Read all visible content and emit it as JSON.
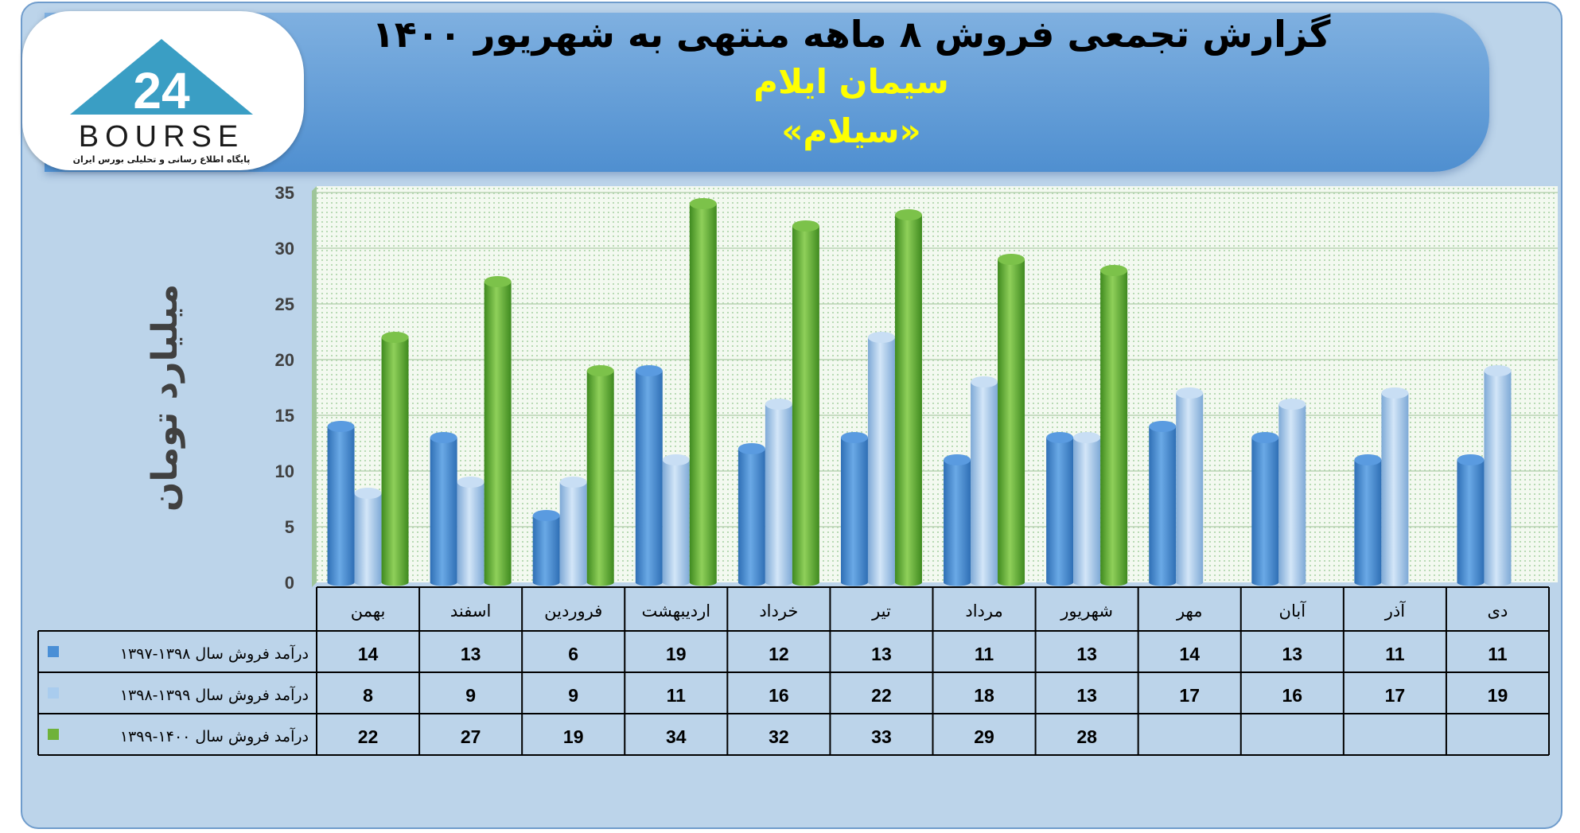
{
  "header": {
    "title": "گزارش تجمعی فروش ۸ ماهه منتهی به شهریور ۱۴۰۰",
    "subtitle": "سیمان ایلام",
    "symbol": "«سیلام»"
  },
  "logo": {
    "text": "BOURSE",
    "number": "24",
    "tagline": "پایگاه اطلاع رسانی و تحلیلی بورس ایران"
  },
  "colors": {
    "series1": "#4a8fd6",
    "series2": "#a9ccee",
    "series3": "#6fb23a",
    "background": "#bcd4ea",
    "plot": "#f2f8ee",
    "banner": "#5b9bd5"
  },
  "chart_data": {
    "type": "bar",
    "title": "گزارش تجمعی فروش ۸ ماهه منتهی به شهریور ۱۴۰۰",
    "ylabel": "میلیارد تومان",
    "xlabel": "",
    "ylim": [
      0,
      35
    ],
    "yticks": [
      0,
      5,
      10,
      15,
      20,
      25,
      30,
      35
    ],
    "grid": true,
    "categories": [
      "بهمن",
      "اسفند",
      "فروردین",
      "اردیبهشت",
      "خرداد",
      "تیر",
      "مرداد",
      "شهریور",
      "مهر",
      "آبان",
      "آذر",
      "دی"
    ],
    "series": [
      {
        "name": "درآمد فروش سال ۱۳۹۸-۱۳۹۷",
        "values": [
          14,
          13,
          6,
          19,
          12,
          13,
          11,
          13,
          14,
          13,
          11,
          11
        ]
      },
      {
        "name": "درآمد فروش سال ۱۳۹۹-۱۳۹۸",
        "values": [
          8,
          9,
          9,
          11,
          16,
          22,
          18,
          13,
          17,
          16,
          17,
          19
        ]
      },
      {
        "name": "درآمد فروش سال ۱۴۰۰-۱۳۹۹",
        "values": [
          22,
          27,
          19,
          34,
          32,
          33,
          29,
          28,
          null,
          null,
          null,
          null
        ]
      }
    ]
  }
}
